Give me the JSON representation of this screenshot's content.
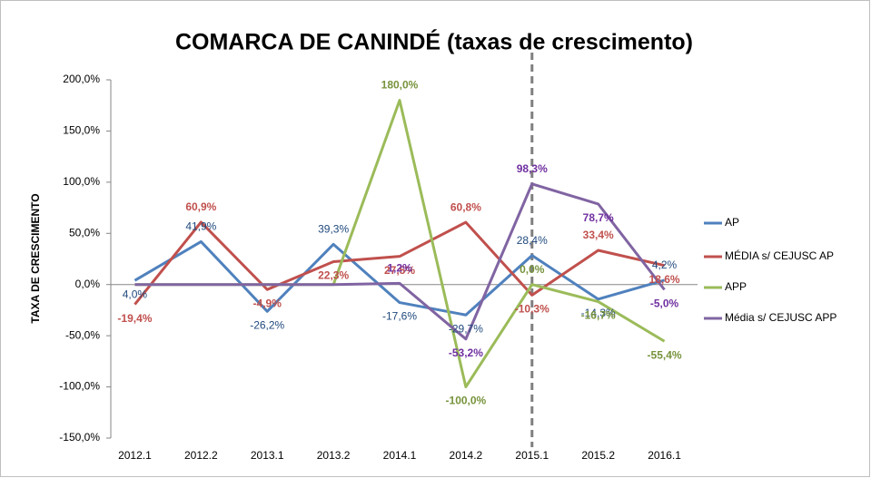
{
  "chart_data": {
    "type": "line",
    "title": "COMARCA DE CANINDÉ (taxas de crescimento)",
    "y_label": "TAXA DE CRESCIMENTO",
    "categories": [
      "2012.1",
      "2012.2",
      "2013.1",
      "2013.2",
      "2014.1",
      "2014.2",
      "2015.1",
      "2015.2",
      "2016.1"
    ],
    "series": [
      {
        "name": "AP",
        "color": "#4f81bd",
        "label_color": "#1f497d",
        "values": [
          4.0,
          41.9,
          -26.2,
          39.3,
          -17.6,
          -29.7,
          28.4,
          -14.3,
          4.2
        ],
        "value_labels": [
          "4,0%",
          "41,9%",
          "-26,2%",
          "39,3%",
          "-17,6%",
          "-29,7%",
          "28,4%",
          "-14,3%",
          "4,2%"
        ]
      },
      {
        "name": "MÉDIA s/ CEJUSC AP",
        "color": "#c0504d",
        "label_color": "#c0504d",
        "values": [
          -19.4,
          60.9,
          -4.9,
          22.3,
          27.5,
          60.8,
          -10.3,
          33.4,
          18.6
        ],
        "value_labels": [
          "-19,4%",
          "60,9%",
          "-4,9%",
          "22,3%",
          "27,5%",
          "60,8%",
          "-10,3%",
          "33,4%",
          "18,6%"
        ]
      },
      {
        "name": "APP",
        "color": "#9bbb59",
        "label_color": "#77933c",
        "values": [
          0,
          0,
          0,
          0,
          180.0,
          -100.0,
          0.0,
          -16.7,
          -55.4
        ],
        "value_labels": [
          null,
          null,
          null,
          null,
          "180,0%",
          "-100,0%",
          "0,0%",
          "-16,7%",
          "-55,4%"
        ]
      },
      {
        "name": "Média s/ CEJUSC APP",
        "color": "#8064a2",
        "label_color": "#7030a0",
        "values": [
          0,
          0,
          0,
          0,
          1.2,
          -53.2,
          98.3,
          78.7,
          -5.0
        ],
        "value_labels": [
          null,
          null,
          null,
          null,
          "1,2%",
          "-53,2%",
          "98,3%",
          "78,7%",
          "-5,0%"
        ]
      }
    ],
    "ylim": [
      -150,
      200
    ],
    "yticks": [
      {
        "value": -150,
        "label": "-150,0%"
      },
      {
        "value": -100,
        "label": "-100,0%"
      },
      {
        "value": -50,
        "label": "-50,0%"
      },
      {
        "value": 0,
        "label": "0,0%"
      },
      {
        "value": 50,
        "label": "50,0%"
      },
      {
        "value": 100,
        "label": "100,0%"
      },
      {
        "value": 150,
        "label": "150,0%"
      },
      {
        "value": 200,
        "label": "200,0%"
      }
    ],
    "legend": "right"
  }
}
